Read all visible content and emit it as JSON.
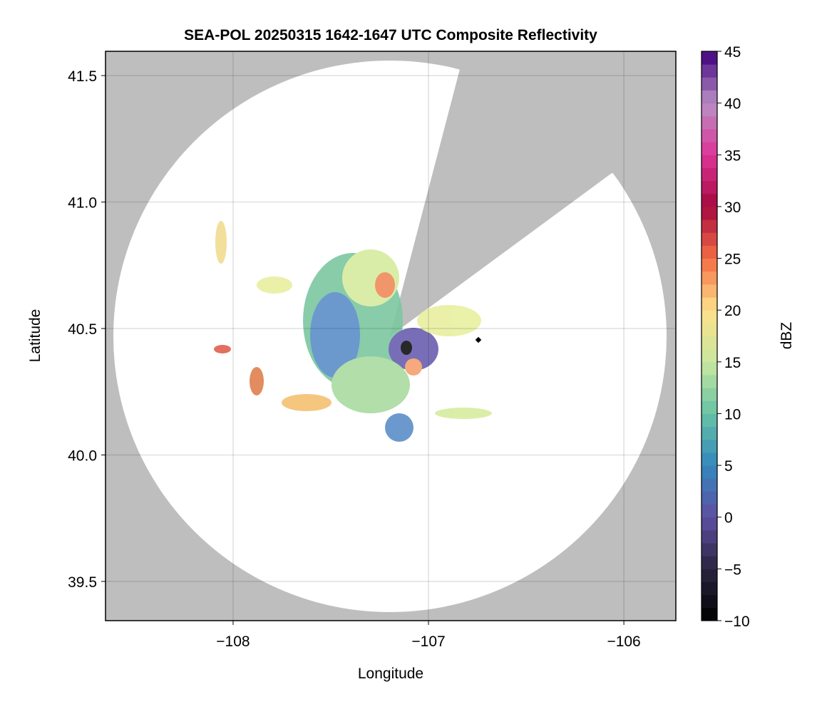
{
  "chart_data": {
    "type": "heatmap",
    "title": "SEA-POL 20250315 1642-1647 UTC Composite Reflectivity",
    "xlabel": "Longitude",
    "ylabel": "Latitude",
    "xlim": [
      -108.653,
      -105.734
    ],
    "ylim": [
      39.345,
      41.596
    ],
    "xticks": [
      {
        "value": -108,
        "label": "−108"
      },
      {
        "value": -107,
        "label": "−107"
      },
      {
        "value": -106,
        "label": "−106"
      }
    ],
    "yticks": [
      39.5,
      {
        "value": 40.0,
        "label": "40.0"
      },
      40.5,
      {
        "value": 41.0,
        "label": "41.0"
      },
      41.5
    ],
    "grid": true,
    "colorbar": {
      "label": "dBZ",
      "clim": [
        -10,
        45
      ],
      "ticks": [
        {
          "value": -10,
          "label": "−10"
        },
        {
          "value": -5,
          "label": "−5"
        },
        0,
        5,
        10,
        15,
        20,
        25,
        30,
        35,
        40,
        45
      ],
      "colormap": [
        "#000000",
        "#2a2440",
        "#5e4fa2",
        "#3288bd",
        "#66c2a5",
        "#c8e89e",
        "#fee08b",
        "#f46d43",
        "#a6093f",
        "#dd3497",
        "#b98fc5",
        "#3f007d"
      ]
    }
  }
}
